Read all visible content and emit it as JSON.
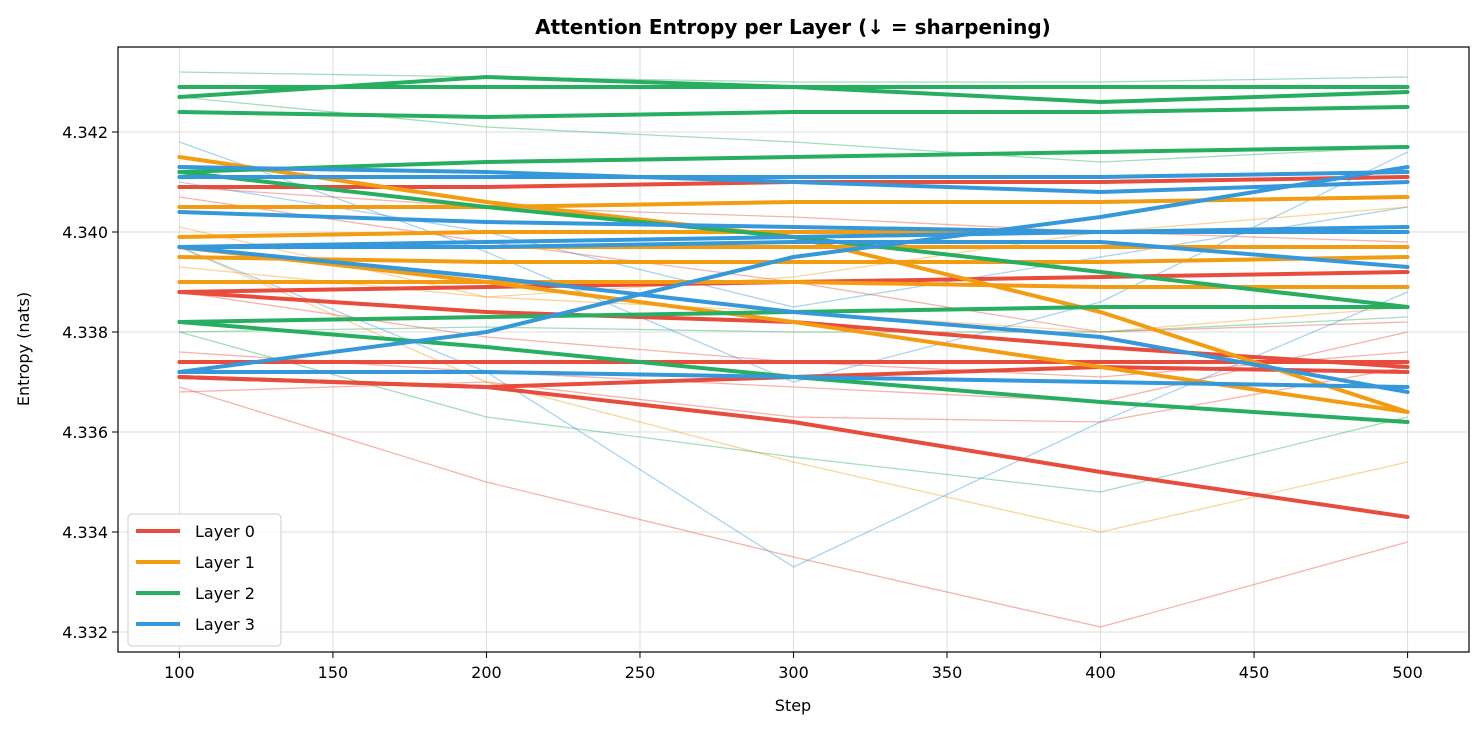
{
  "chart_data": {
    "type": "line",
    "title": "Attention Entropy per Layer (↓ = sharpening)",
    "xlabel": "Step",
    "ylabel": "Entropy (nats)",
    "x": [
      100,
      200,
      300,
      400,
      500
    ],
    "xlim": [
      80,
      520
    ],
    "ylim": [
      4.3316,
      4.3437
    ],
    "xticks": [
      "100",
      "150",
      "200",
      "250",
      "300",
      "350",
      "400",
      "450",
      "500"
    ],
    "yticks": [
      "4.332",
      "4.334",
      "4.336",
      "4.338",
      "4.340",
      "4.342"
    ],
    "grid": true,
    "legend_position": "lower-left",
    "legend": [
      {
        "label": "Layer 0",
        "color": "#e74c3c"
      },
      {
        "label": "Layer 1",
        "color": "#f39c12"
      },
      {
        "label": "Layer 2",
        "color": "#27ae60"
      },
      {
        "label": "Layer 3",
        "color": "#3498db"
      }
    ],
    "layers": [
      {
        "color": "#e74c3c",
        "mean_series": [
          [
            4.3409,
            4.3409,
            4.341,
            4.341,
            4.3411
          ],
          [
            4.3388,
            4.3389,
            4.339,
            4.3391,
            4.3392
          ],
          [
            4.3388,
            4.3384,
            4.3382,
            4.3377,
            4.3373
          ],
          [
            4.3374,
            4.3374,
            4.3374,
            4.3374,
            4.3374
          ],
          [
            4.3371,
            4.3369,
            4.3371,
            4.3373,
            4.3372
          ],
          [
            4.3371,
            4.3369,
            4.3362,
            4.3352,
            4.3343
          ]
        ],
        "head_series": [
          [
            4.3369,
            4.335,
            4.3335,
            4.3321,
            4.3338
          ],
          [
            4.3368,
            4.337,
            4.3363,
            4.3362,
            4.3373
          ],
          [
            4.3376,
            4.3372,
            4.3369,
            4.3366,
            4.338
          ],
          [
            4.3388,
            4.3379,
            4.3374,
            4.3371,
            4.3376
          ],
          [
            4.3407,
            4.3398,
            4.339,
            4.338,
            4.3382
          ],
          [
            4.3409,
            4.3405,
            4.3403,
            4.34,
            4.3398
          ]
        ]
      },
      {
        "color": "#f39c12",
        "mean_series": [
          [
            4.3415,
            4.3406,
            4.3399,
            4.3384,
            4.3364
          ],
          [
            4.3405,
            4.3405,
            4.3406,
            4.3406,
            4.3407
          ],
          [
            4.3399,
            4.34,
            4.34,
            4.34,
            4.34
          ],
          [
            4.3397,
            4.3397,
            4.3397,
            4.3397,
            4.3397
          ],
          [
            4.3395,
            4.3394,
            4.3394,
            4.3394,
            4.3395
          ],
          [
            4.339,
            4.339,
            4.339,
            4.3389,
            4.3389
          ],
          [
            4.3397,
            4.339,
            4.3382,
            4.3373,
            4.3364
          ]
        ],
        "head_series": [
          [
            4.3397,
            4.337,
            4.3354,
            4.334,
            4.3354
          ],
          [
            4.3401,
            4.3387,
            4.3384,
            4.338,
            4.3385
          ],
          [
            4.3393,
            4.3387,
            4.3391,
            4.34,
            4.3405
          ]
        ]
      },
      {
        "color": "#27ae60",
        "mean_series": [
          [
            4.3429,
            4.3429,
            4.3429,
            4.3429,
            4.3429
          ],
          [
            4.3427,
            4.3431,
            4.3429,
            4.3426,
            4.3428
          ],
          [
            4.3424,
            4.3423,
            4.3424,
            4.3424,
            4.3425
          ],
          [
            4.3412,
            4.3414,
            4.3415,
            4.3416,
            4.3417
          ],
          [
            4.3412,
            4.3405,
            4.3399,
            4.3392,
            4.3385
          ],
          [
            4.3382,
            4.3383,
            4.3384,
            4.3385,
            4.3385
          ],
          [
            4.3382,
            4.3377,
            4.3371,
            4.3366,
            4.3362
          ]
        ],
        "head_series": [
          [
            4.3432,
            4.3431,
            4.343,
            4.343,
            4.3431
          ],
          [
            4.3427,
            4.3421,
            4.3418,
            4.3414,
            4.3417
          ],
          [
            4.338,
            4.3363,
            4.3355,
            4.3348,
            4.3363
          ],
          [
            4.338,
            4.3381,
            4.338,
            4.338,
            4.3383
          ]
        ]
      },
      {
        "color": "#3498db",
        "mean_series": [
          [
            4.3413,
            4.3412,
            4.341,
            4.3408,
            4.341
          ],
          [
            4.3411,
            4.3411,
            4.3411,
            4.3411,
            4.3412
          ],
          [
            4.3404,
            4.3402,
            4.3401,
            4.34,
            4.34
          ],
          [
            4.3397,
            4.3398,
            4.3399,
            4.34,
            4.3401
          ],
          [
            4.3397,
            4.3391,
            4.3384,
            4.3379,
            4.3368
          ],
          [
            4.3372,
            4.338,
            4.3395,
            4.3403,
            4.3413
          ],
          [
            4.3372,
            4.3372,
            4.3371,
            4.337,
            4.3369
          ],
          [
            4.3397,
            4.3397,
            4.3398,
            4.3398,
            4.3393
          ]
        ],
        "head_series": [
          [
            4.3418,
            4.3396,
            4.337,
            4.3386,
            4.3416
          ],
          [
            4.3397,
            4.3372,
            4.3333,
            4.3362,
            4.3388
          ],
          [
            4.341,
            4.34,
            4.3385,
            4.3395,
            4.3405
          ]
        ]
      }
    ]
  }
}
